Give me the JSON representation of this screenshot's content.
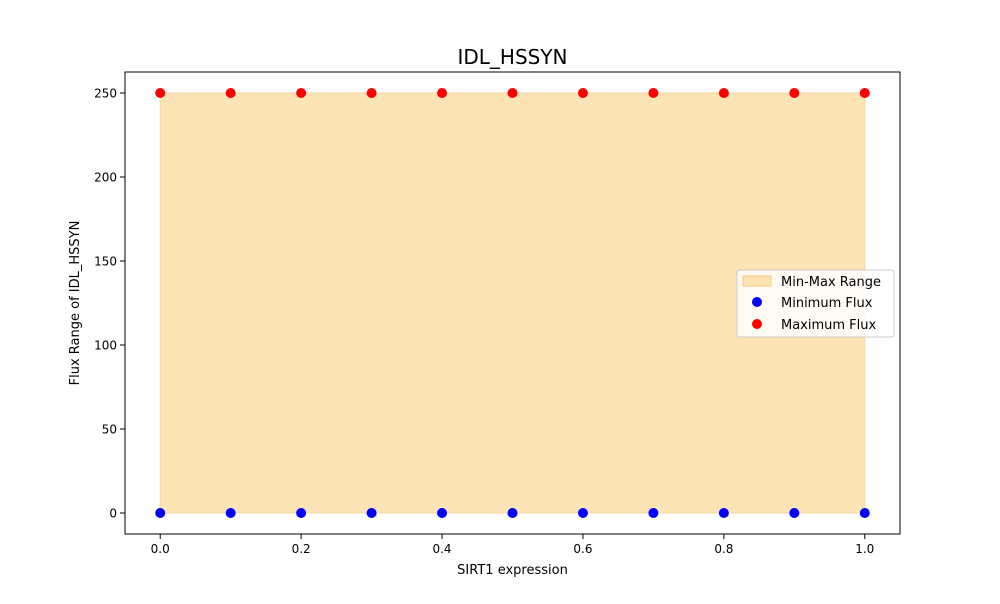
{
  "chart_data": {
    "type": "scatter",
    "title": "IDL_HSSYN",
    "xlabel": "SIRT1 expression",
    "ylabel": "Flux Range of IDL_HSSYN",
    "x": [
      0.0,
      0.1,
      0.2,
      0.3,
      0.4,
      0.5,
      0.6,
      0.7,
      0.8,
      0.9,
      1.0
    ],
    "xlim": [
      -0.05,
      1.05
    ],
    "ylim": [
      -12.5,
      262.5
    ],
    "xticks": [
      0.0,
      0.2,
      0.4,
      0.6,
      0.8,
      1.0
    ],
    "xtick_labels": [
      "0.0",
      "0.2",
      "0.4",
      "0.6",
      "0.8",
      "1.0"
    ],
    "yticks": [
      0,
      50,
      100,
      150,
      200,
      250
    ],
    "ytick_labels": [
      "0",
      "50",
      "100",
      "150",
      "200",
      "250"
    ],
    "grid": false,
    "legend_position": "center-right",
    "range": {
      "name": "Min-Max Range",
      "color": "#fde3b3",
      "lower": [
        0,
        0,
        0,
        0,
        0,
        0,
        0,
        0,
        0,
        0,
        0
      ],
      "upper": [
        250,
        250,
        250,
        250,
        250,
        250,
        250,
        250,
        250,
        250,
        250
      ]
    },
    "series": [
      {
        "name": "Minimum Flux",
        "color": "#0000ff",
        "values": [
          0,
          0,
          0,
          0,
          0,
          0,
          0,
          0,
          0,
          0,
          0
        ]
      },
      {
        "name": "Maximum Flux",
        "color": "#ff0000",
        "values": [
          250,
          250,
          250,
          250,
          250,
          250,
          250,
          250,
          250,
          250,
          250
        ]
      }
    ]
  }
}
